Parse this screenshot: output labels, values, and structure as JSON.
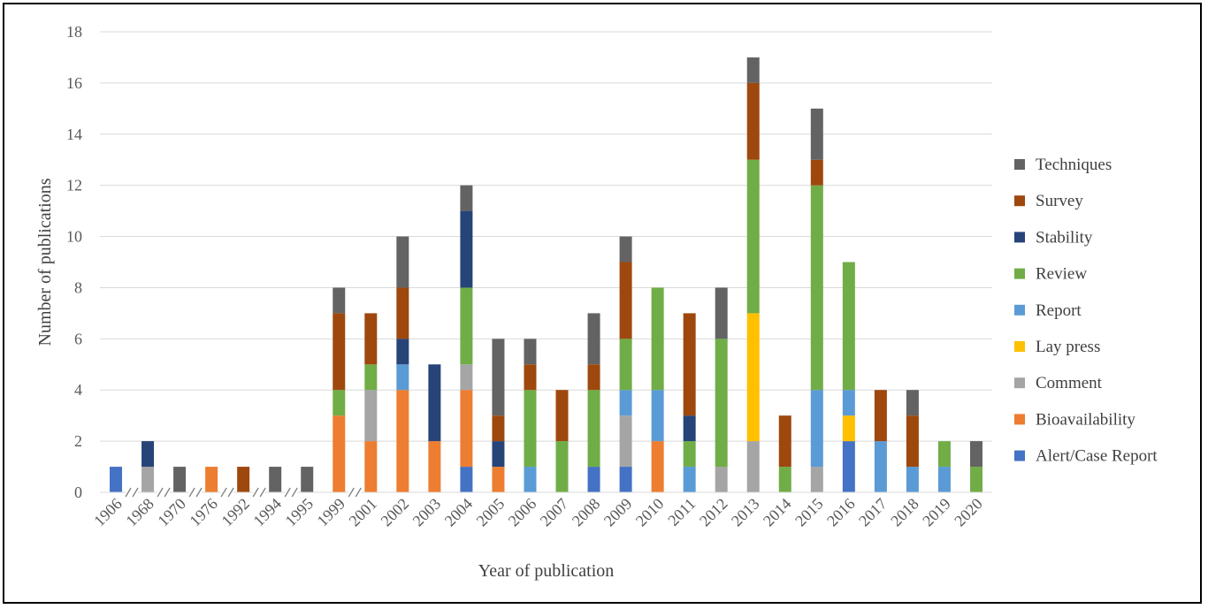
{
  "chart_data": {
    "type": "bar",
    "stacked": true,
    "title": "",
    "xlabel": "Year of publication",
    "ylabel": "Number of publications",
    "ylim": [
      0,
      18
    ],
    "yticks": [
      0,
      2,
      4,
      6,
      8,
      10,
      12,
      14,
      16,
      18
    ],
    "grid": true,
    "legend_position": "right",
    "categories": [
      "1906",
      "1968",
      "1970",
      "1976",
      "1992",
      "1994",
      "1995",
      "1999",
      "2001",
      "2002",
      "2003",
      "2004",
      "2005",
      "2006",
      "2007",
      "2008",
      "2009",
      "2010",
      "2011",
      "2012",
      "2013",
      "2014",
      "2015",
      "2016",
      "2017",
      "2018",
      "2019",
      "2020"
    ],
    "axis_breaks_after": [
      "1906",
      "1968",
      "1970",
      "1976",
      "1992",
      "1994",
      "1999"
    ],
    "series": [
      {
        "name": "Alert/Case Report",
        "color": "#4472C4",
        "values": [
          1,
          0,
          0,
          0,
          0,
          0,
          0,
          0,
          0,
          0,
          0,
          1,
          0,
          0,
          0,
          1,
          1,
          0,
          0,
          0,
          0,
          0,
          0,
          2,
          0,
          0,
          0,
          0
        ]
      },
      {
        "name": "Bioavailability",
        "color": "#ED7D31",
        "values": [
          0,
          0,
          0,
          1,
          0,
          0,
          0,
          3,
          2,
          4,
          2,
          3,
          1,
          0,
          0,
          0,
          0,
          2,
          0,
          0,
          0,
          0,
          0,
          0,
          0,
          0,
          0,
          0
        ]
      },
      {
        "name": "Comment",
        "color": "#A5A5A5",
        "values": [
          0,
          1,
          0,
          0,
          0,
          0,
          0,
          0,
          2,
          0,
          0,
          1,
          0,
          0,
          0,
          0,
          2,
          0,
          0,
          1,
          2,
          0,
          1,
          0,
          0,
          0,
          0,
          0
        ]
      },
      {
        "name": "Lay press",
        "color": "#FFC000",
        "values": [
          0,
          0,
          0,
          0,
          0,
          0,
          0,
          0,
          0,
          0,
          0,
          0,
          0,
          0,
          0,
          0,
          0,
          0,
          0,
          0,
          5,
          0,
          0,
          1,
          0,
          0,
          0,
          0
        ]
      },
      {
        "name": "Report",
        "color": "#5B9BD5",
        "values": [
          0,
          0,
          0,
          0,
          0,
          0,
          0,
          0,
          0,
          1,
          0,
          0,
          0,
          1,
          0,
          0,
          1,
          2,
          1,
          0,
          0,
          0,
          3,
          1,
          2,
          1,
          1,
          0
        ]
      },
      {
        "name": "Review",
        "color": "#70AD47",
        "values": [
          0,
          0,
          0,
          0,
          0,
          0,
          0,
          1,
          1,
          0,
          0,
          3,
          0,
          3,
          2,
          3,
          2,
          4,
          1,
          5,
          6,
          1,
          8,
          5,
          0,
          0,
          1,
          1
        ]
      },
      {
        "name": "Stability",
        "color": "#264478",
        "values": [
          0,
          1,
          0,
          0,
          0,
          0,
          0,
          0,
          0,
          1,
          3,
          3,
          1,
          0,
          0,
          0,
          0,
          0,
          1,
          0,
          0,
          0,
          0,
          0,
          0,
          0,
          0,
          0
        ]
      },
      {
        "name": "Survey",
        "color": "#9E480E",
        "values": [
          0,
          0,
          0,
          0,
          1,
          0,
          0,
          3,
          2,
          2,
          0,
          0,
          1,
          1,
          2,
          1,
          3,
          0,
          4,
          0,
          3,
          2,
          1,
          0,
          2,
          2,
          0,
          0
        ]
      },
      {
        "name": "Techniques",
        "color": "#636363",
        "values": [
          0,
          0,
          1,
          0,
          0,
          1,
          1,
          1,
          0,
          2,
          0,
          1,
          3,
          1,
          0,
          2,
          1,
          0,
          0,
          2,
          1,
          0,
          2,
          0,
          0,
          1,
          0,
          1
        ]
      }
    ]
  }
}
